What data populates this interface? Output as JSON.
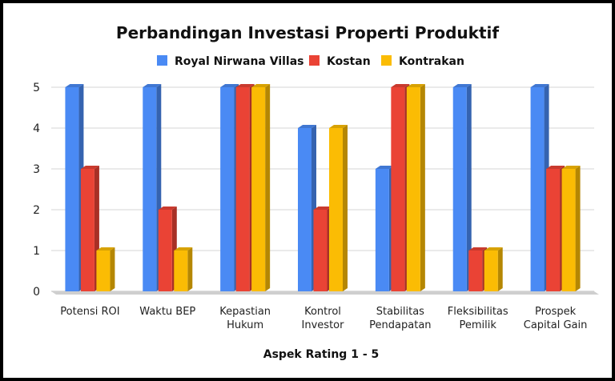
{
  "chart_data": {
    "type": "bar",
    "title": "Perbandingan Investasi Properti Produktif",
    "xlabel": "Aspek Rating 1 - 5",
    "ylabel": "",
    "ylim": [
      0,
      5
    ],
    "yticks": [
      0,
      1,
      2,
      3,
      4,
      5
    ],
    "grid": true,
    "legend_position": "top",
    "categories": [
      [
        "Potensi ROI"
      ],
      [
        "Waktu BEP"
      ],
      [
        "Kepastian",
        "Hukum"
      ],
      [
        "Kontrol",
        "Investor"
      ],
      [
        "Stabilitas",
        "Pendapatan"
      ],
      [
        "Fleksibilitas",
        "Pemilik"
      ],
      [
        "Prospek",
        "Capital Gain"
      ]
    ],
    "series": [
      {
        "name": "Royal Nirwana Villas",
        "color": "#4a8af4",
        "values": [
          5,
          5,
          5,
          4,
          3,
          5,
          5
        ]
      },
      {
        "name": "Kostan",
        "color": "#ea4335",
        "values": [
          3,
          2,
          5,
          2,
          5,
          1,
          3
        ]
      },
      {
        "name": "Kontrakan",
        "color": "#fbbc04",
        "values": [
          1,
          1,
          5,
          4,
          5,
          1,
          3
        ]
      }
    ]
  }
}
